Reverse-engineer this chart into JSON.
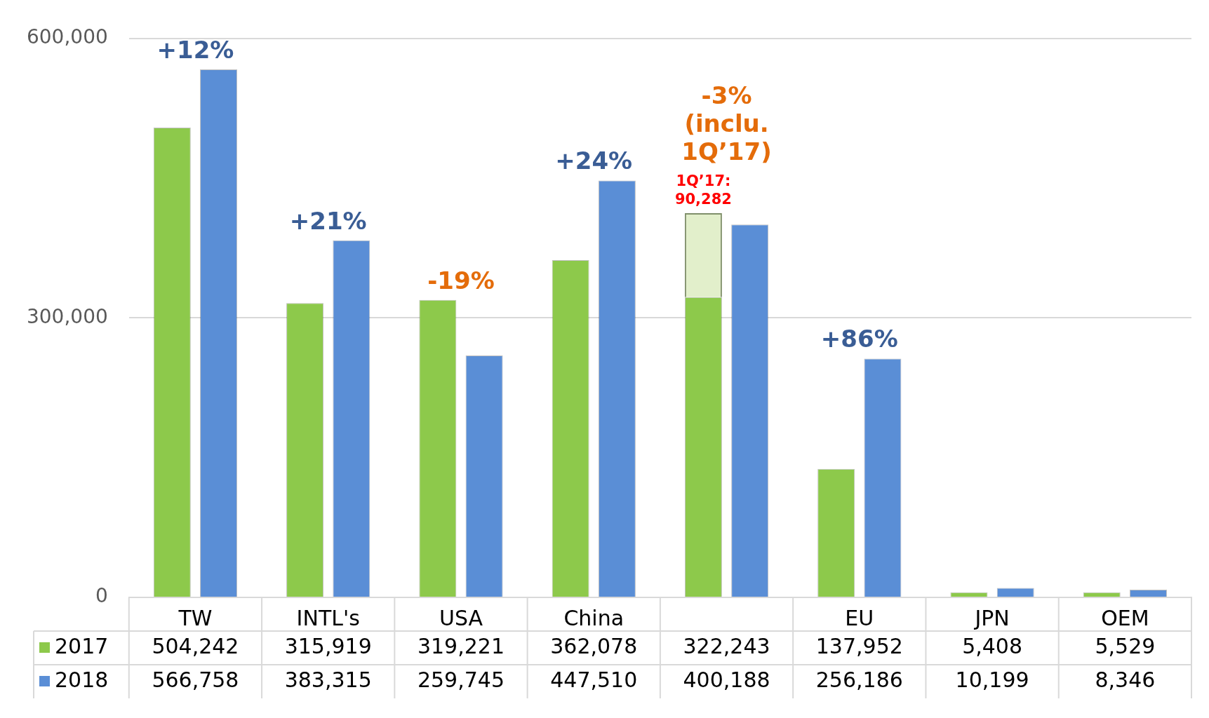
{
  "chart_data": {
    "type": "bar",
    "categories": [
      "TW",
      "INTL's",
      "USA",
      "China",
      null,
      "EU",
      "JPN",
      "OEM"
    ],
    "series": [
      {
        "name": "2017",
        "color": "#8dc94b",
        "values": [
          504242,
          315919,
          319221,
          362078,
          322243,
          137952,
          5408,
          5529
        ],
        "value_labels": [
          "504,242",
          "315,919",
          "319,221",
          "362,078",
          "322,243",
          "137,952",
          "5,408",
          "5,529"
        ]
      },
      {
        "color": "#e2efcb",
        "values": [
          null,
          null,
          null,
          null,
          90282,
          null,
          null,
          null
        ],
        "base": [
          null,
          null,
          null,
          null,
          322243,
          null,
          null,
          null
        ],
        "value_labels": [
          null,
          null,
          null,
          null,
          "1Q’17: 90,282",
          null,
          null,
          null
        ]
      },
      {
        "name": "2018",
        "color": "#5a8ed6",
        "values": [
          566758,
          383315,
          259745,
          447510,
          400188,
          256186,
          10199,
          8346
        ],
        "value_labels": [
          "566,758",
          "383,315",
          "259,745",
          "447,510",
          "400,188",
          "256,186",
          "10,199",
          "8,346"
        ]
      }
    ],
    "ylim": [
      0,
      600000
    ],
    "yticks": [
      0,
      {
        "value": 300000,
        "label": "300,000"
      },
      {
        "value": 600000,
        "label": "600,000"
      }
    ],
    "grid": "y",
    "legend": "bottom left",
    "annotations": [
      "+12%",
      "+21%",
      "-19%",
      "+24%",
      "-3% (inclu. 1Q’17)",
      "+86%"
    ]
  }
}
